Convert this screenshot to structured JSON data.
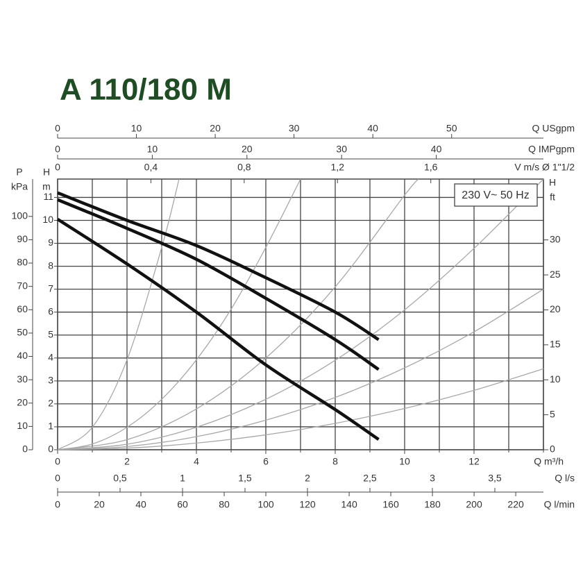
{
  "chart_data": {
    "type": "line",
    "title": "A 110/180 M",
    "annotation": "230 V~ 50 Hz",
    "x_label": "Q m³/h",
    "xlim": [
      0,
      14
    ],
    "xticks": [
      0,
      2,
      4,
      6,
      8,
      10,
      12
    ],
    "xminor": [
      1,
      3,
      5,
      7,
      9,
      11,
      13,
      14
    ],
    "y_label": [
      "H",
      "m"
    ],
    "ylim": [
      0,
      11.8
    ],
    "yticks": [
      0,
      1,
      2,
      3,
      4,
      5,
      6,
      7,
      8,
      9,
      10,
      11
    ],
    "y2_label": [
      "H",
      "ft"
    ],
    "y2lim": [
      0,
      38.7
    ],
    "y2ticks": [
      0,
      5,
      10,
      15,
      20,
      25,
      30
    ],
    "p_label": [
      "P",
      "kPa"
    ],
    "plim": [
      0,
      116
    ],
    "pticks": [
      0,
      10,
      20,
      30,
      40,
      50,
      60,
      70,
      80,
      90,
      100
    ],
    "grid": true,
    "top_axes": [
      {
        "label": "Q USgpm",
        "lim": [
          0,
          61.65
        ],
        "ticks": [
          0,
          10,
          20,
          30,
          40,
          50
        ]
      },
      {
        "label": "Q IMPgpm",
        "lim": [
          0,
          51.32
        ],
        "ticks": [
          0,
          10,
          20,
          30,
          40
        ]
      },
      {
        "label": "V m/s Ø 1\"1/2",
        "lim": [
          0,
          2.083
        ],
        "ticks": [
          0,
          {
            "value": 0.4,
            "label": "0,4"
          },
          {
            "value": 0.8,
            "label": "0,8"
          },
          {
            "value": 1.2,
            "label": "1,2"
          },
          {
            "value": 1.6,
            "label": "1,6"
          }
        ]
      }
    ],
    "bottom_axes": [
      {
        "label": "Q l/s",
        "lim": [
          0,
          3.889
        ],
        "ticks": [
          0,
          {
            "value": 0.5,
            "label": "0,5"
          },
          1,
          {
            "value": 1.5,
            "label": "1,5"
          },
          2,
          {
            "value": 2.5,
            "label": "2,5"
          },
          3,
          {
            "value": 3.5,
            "label": "3,5"
          }
        ]
      },
      {
        "label": "Q l/min",
        "lim": [
          0,
          233.3
        ],
        "ticks": [
          0,
          20,
          40,
          60,
          80,
          100,
          120,
          140,
          160,
          180,
          200,
          220
        ]
      }
    ],
    "pump_curves": {
      "color": "#111111",
      "series": [
        {
          "x": [
            0,
            2,
            4,
            6,
            8,
            9.25
          ],
          "values": [
            11.2,
            10.0,
            8.9,
            7.5,
            6.0,
            4.8
          ]
        },
        {
          "x": [
            0,
            2,
            4,
            6,
            8,
            9.25
          ],
          "values": [
            10.9,
            9.65,
            8.3,
            6.6,
            4.8,
            3.5
          ]
        },
        {
          "x": [
            0,
            2,
            4,
            6,
            8,
            9.25
          ],
          "values": [
            10.05,
            8.1,
            6.0,
            3.7,
            1.75,
            0.45
          ]
        }
      ]
    },
    "system_curves": {
      "color": "#a8a8a8",
      "series": [
        {
          "x": [
            0,
            1,
            2,
            3,
            3.5
          ],
          "values": [
            0,
            0.98,
            3.92,
            8.82,
            11.8
          ]
        },
        {
          "x": [
            0,
            1,
            2,
            3,
            4,
            5,
            6,
            7
          ],
          "values": [
            0,
            0.25,
            0.98,
            2.2,
            3.92,
            6.13,
            8.82,
            11.8
          ]
        },
        {
          "x": [
            0,
            2,
            4,
            6,
            8,
            10,
            10.4
          ],
          "values": [
            0,
            0.44,
            1.78,
            4.0,
            7.1,
            11.1,
            11.8
          ]
        },
        {
          "x": [
            0,
            2,
            4,
            6,
            8,
            10,
            12,
            14
          ],
          "values": [
            0,
            0.24,
            0.98,
            2.2,
            3.9,
            6.1,
            8.78,
            11.8
          ]
        },
        {
          "x": [
            0,
            2,
            4,
            6,
            8,
            10,
            12,
            14
          ],
          "values": [
            0,
            0.14,
            0.57,
            1.29,
            2.28,
            3.57,
            5.14,
            7.0
          ]
        },
        {
          "x": [
            0,
            2,
            4,
            6,
            8,
            10,
            12,
            14
          ],
          "values": [
            0,
            0.07,
            0.29,
            0.65,
            1.15,
            1.8,
            2.59,
            3.53
          ]
        }
      ]
    }
  }
}
